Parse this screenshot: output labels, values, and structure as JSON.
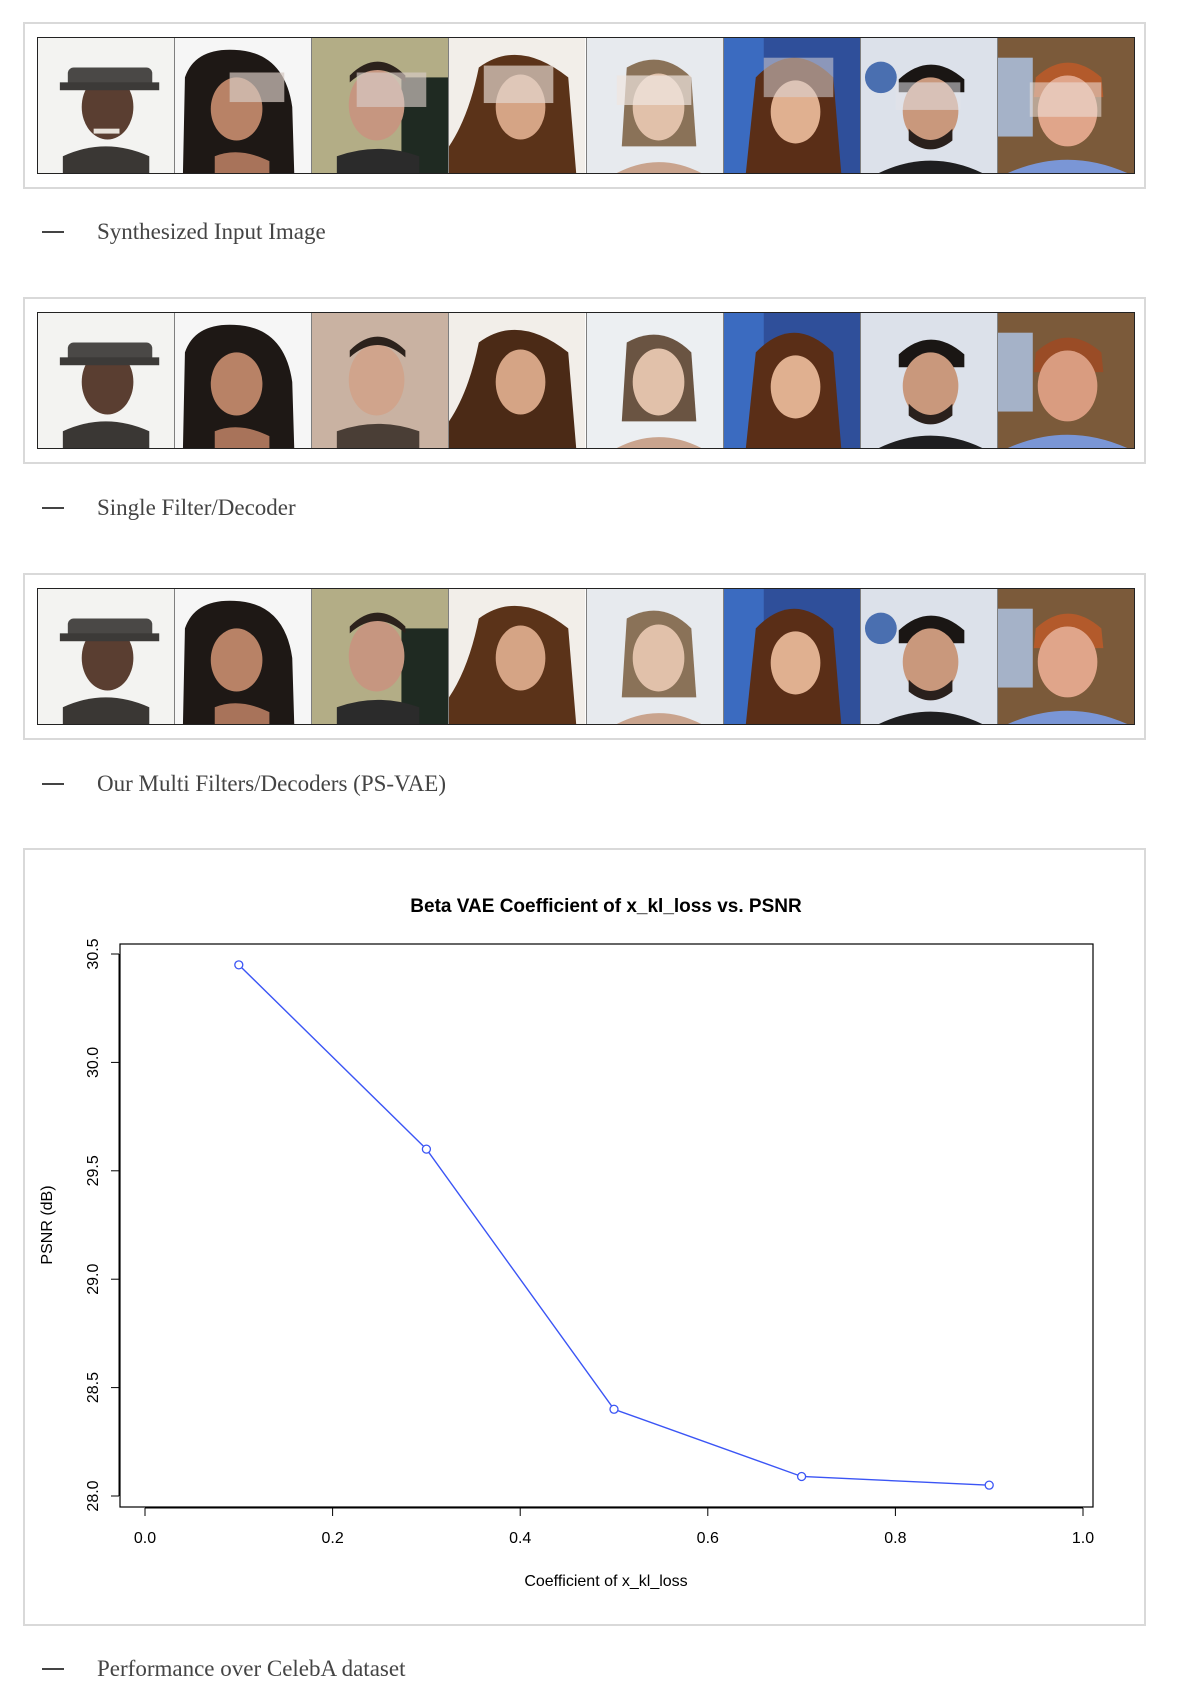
{
  "captions": {
    "input": "Synthesized Input Image",
    "single": "Single Filter/Decoder",
    "multi": "Our Multi Filters/Decoders (PS-VAE)",
    "performance": "Performance over CelebA dataset"
  },
  "chart_data": {
    "type": "line",
    "title": "Beta VAE Coefficient of x_kl_loss vs. PSNR",
    "xlabel": "Coefficient of x_kl_loss",
    "ylabel": "PSNR (dB)",
    "xlim": [
      0.0,
      1.0
    ],
    "ylim": [
      28.0,
      30.5
    ],
    "x_ticks": [
      "0.0",
      "0.2",
      "0.4",
      "0.6",
      "0.8",
      "1.0"
    ],
    "y_ticks": [
      "28.0",
      "28.5",
      "29.0",
      "29.5",
      "30.0",
      "30.5"
    ],
    "series": [
      {
        "x": [
          0.1,
          0.3,
          0.5,
          0.7,
          0.9
        ],
        "y": [
          30.45,
          29.6,
          28.4,
          28.09,
          28.05
        ]
      }
    ],
    "line_color": "#3b55f5",
    "grid": false
  }
}
